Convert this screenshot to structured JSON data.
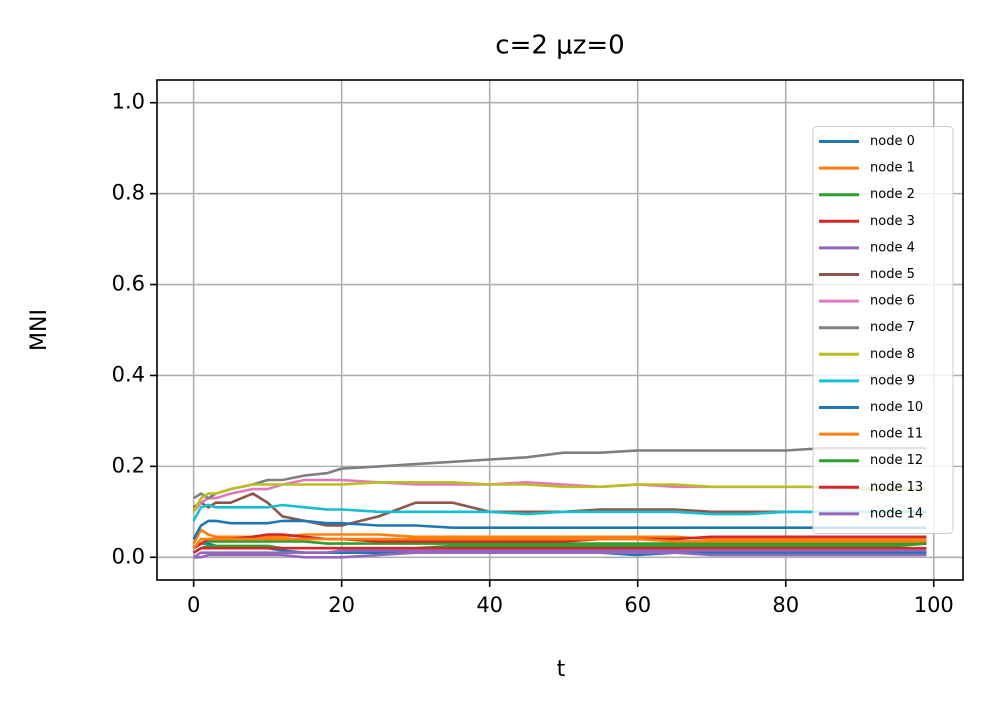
{
  "chart_data": {
    "type": "line",
    "title": "c=2 μz=0",
    "x_label": "t",
    "y_label": "MNI",
    "xlim": [
      -4.95,
      103.95
    ],
    "ylim": [
      -0.05,
      1.05
    ],
    "xticks": [
      0,
      20,
      40,
      60,
      80,
      100
    ],
    "yticks": [
      {
        "value": 0,
        "label": "0.0"
      },
      {
        "value": 0.2,
        "label": "0.2"
      },
      {
        "value": 0.4,
        "label": "0.4"
      },
      {
        "value": 0.6,
        "label": "0.6"
      },
      {
        "value": 0.8,
        "label": "0.8"
      },
      {
        "value": 1,
        "label": "1.0"
      }
    ],
    "grid": true,
    "legend": "center right",
    "x": [
      0,
      1,
      2,
      3,
      5,
      8,
      10,
      12,
      15,
      18,
      20,
      25,
      30,
      35,
      40,
      45,
      50,
      55,
      60,
      65,
      70,
      75,
      80,
      85,
      90,
      95,
      99
    ],
    "series": [
      {
        "name": "node 0",
        "color": "#1f77b4",
        "values": [
          0.02,
          0.03,
          0.03,
          0.025,
          0.02,
          0.02,
          0.02,
          0.015,
          0.01,
          0.01,
          0.01,
          0.01,
          0.01,
          0.01,
          0.01,
          0.01,
          0.01,
          0.01,
          0.005,
          0.01,
          0.01,
          0.01,
          0.01,
          0.01,
          0.01,
          0.01,
          0.01
        ]
      },
      {
        "name": "node 1",
        "color": "#ff7f0e",
        "values": [
          0.03,
          0.06,
          0.05,
          0.045,
          0.045,
          0.045,
          0.045,
          0.045,
          0.05,
          0.05,
          0.05,
          0.05,
          0.045,
          0.045,
          0.045,
          0.045,
          0.045,
          0.045,
          0.045,
          0.045,
          0.04,
          0.04,
          0.04,
          0.04,
          0.04,
          0.04,
          0.04
        ]
      },
      {
        "name": "node 2",
        "color": "#2ca02c",
        "values": [
          0.02,
          0.03,
          0.035,
          0.035,
          0.035,
          0.035,
          0.035,
          0.035,
          0.035,
          0.03,
          0.03,
          0.03,
          0.03,
          0.03,
          0.03,
          0.03,
          0.03,
          0.03,
          0.03,
          0.03,
          0.03,
          0.03,
          0.03,
          0.03,
          0.03,
          0.03,
          0.03
        ]
      },
      {
        "name": "node 3",
        "color": "#d62728",
        "values": [
          0.02,
          0.03,
          0.04,
          0.04,
          0.04,
          0.045,
          0.05,
          0.05,
          0.045,
          0.04,
          0.04,
          0.035,
          0.035,
          0.035,
          0.035,
          0.035,
          0.035,
          0.04,
          0.04,
          0.04,
          0.045,
          0.045,
          0.045,
          0.045,
          0.045,
          0.045,
          0.045
        ]
      },
      {
        "name": "node 4",
        "color": "#9467bd",
        "values": [
          0,
          0,
          0.005,
          0.005,
          0.005,
          0.005,
          0.005,
          0.005,
          0,
          0,
          0,
          0.005,
          0.01,
          0.01,
          0.01,
          0.01,
          0.01,
          0.01,
          0.01,
          0.01,
          0.005,
          0.005,
          0.005,
          0.005,
          0.005,
          0.005,
          0.005
        ]
      },
      {
        "name": "node 5",
        "color": "#8c564b",
        "values": [
          0.11,
          0.12,
          0.11,
          0.12,
          0.12,
          0.14,
          0.12,
          0.09,
          0.08,
          0.07,
          0.07,
          0.09,
          0.12,
          0.12,
          0.1,
          0.1,
          0.1,
          0.105,
          0.105,
          0.105,
          0.1,
          0.1,
          0.1,
          0.1,
          0.1,
          0.1,
          0.1
        ]
      },
      {
        "name": "node 6",
        "color": "#e377c2",
        "values": [
          0.1,
          0.12,
          0.13,
          0.13,
          0.14,
          0.15,
          0.15,
          0.16,
          0.17,
          0.17,
          0.17,
          0.165,
          0.16,
          0.16,
          0.16,
          0.165,
          0.16,
          0.155,
          0.16,
          0.155,
          0.155,
          0.155,
          0.155,
          0.155,
          0.15,
          0.15,
          0.15
        ]
      },
      {
        "name": "node 7",
        "color": "#7f7f7f",
        "values": [
          0.13,
          0.14,
          0.13,
          0.14,
          0.15,
          0.16,
          0.17,
          0.17,
          0.18,
          0.185,
          0.195,
          0.2,
          0.205,
          0.21,
          0.215,
          0.22,
          0.23,
          0.23,
          0.235,
          0.235,
          0.235,
          0.235,
          0.235,
          0.24,
          0.24,
          0.24,
          0.24
        ]
      },
      {
        "name": "node 8",
        "color": "#bcbd22",
        "values": [
          0.1,
          0.13,
          0.14,
          0.14,
          0.15,
          0.16,
          0.16,
          0.16,
          0.16,
          0.16,
          0.16,
          0.165,
          0.165,
          0.165,
          0.16,
          0.16,
          0.155,
          0.155,
          0.16,
          0.16,
          0.155,
          0.155,
          0.155,
          0.155,
          0.15,
          0.15,
          0.15
        ]
      },
      {
        "name": "node 9",
        "color": "#17becf",
        "values": [
          0.08,
          0.11,
          0.115,
          0.11,
          0.11,
          0.11,
          0.11,
          0.115,
          0.11,
          0.105,
          0.105,
          0.1,
          0.1,
          0.1,
          0.1,
          0.095,
          0.1,
          0.1,
          0.1,
          0.1,
          0.095,
          0.095,
          0.1,
          0.1,
          0.1,
          0.1,
          0.1
        ]
      },
      {
        "name": "node 10",
        "color": "#1f77b4",
        "values": [
          0.04,
          0.07,
          0.08,
          0.08,
          0.075,
          0.075,
          0.075,
          0.08,
          0.08,
          0.075,
          0.075,
          0.07,
          0.07,
          0.065,
          0.065,
          0.065,
          0.065,
          0.065,
          0.065,
          0.065,
          0.065,
          0.065,
          0.065,
          0.065,
          0.065,
          0.065,
          0.065
        ]
      },
      {
        "name": "node 11",
        "color": "#ff7f0e",
        "values": [
          0.02,
          0.04,
          0.04,
          0.04,
          0.04,
          0.04,
          0.04,
          0.04,
          0.04,
          0.04,
          0.04,
          0.04,
          0.04,
          0.04,
          0.04,
          0.04,
          0.04,
          0.04,
          0.04,
          0.035,
          0.035,
          0.035,
          0.035,
          0.035,
          0.035,
          0.035,
          0.035
        ]
      },
      {
        "name": "node 12",
        "color": "#2ca02c",
        "values": [
          0.01,
          0.02,
          0.025,
          0.025,
          0.025,
          0.025,
          0.025,
          0.02,
          0.02,
          0.02,
          0.02,
          0.02,
          0.02,
          0.025,
          0.025,
          0.025,
          0.025,
          0.025,
          0.025,
          0.025,
          0.025,
          0.025,
          0.025,
          0.025,
          0.025,
          0.025,
          0.03
        ]
      },
      {
        "name": "node 13",
        "color": "#d62728",
        "values": [
          0.01,
          0.02,
          0.02,
          0.02,
          0.02,
          0.02,
          0.02,
          0.02,
          0.02,
          0.02,
          0.02,
          0.02,
          0.02,
          0.02,
          0.02,
          0.02,
          0.02,
          0.02,
          0.02,
          0.02,
          0.02,
          0.02,
          0.02,
          0.02,
          0.02,
          0.02,
          0.02
        ]
      },
      {
        "name": "node 14",
        "color": "#9467bd",
        "values": [
          0,
          0.01,
          0.01,
          0.01,
          0.01,
          0.01,
          0.01,
          0.01,
          0.01,
          0.01,
          0.015,
          0.015,
          0.015,
          0.015,
          0.015,
          0.015,
          0.015,
          0.015,
          0.015,
          0.015,
          0.015,
          0.015,
          0.015,
          0.015,
          0.015,
          0.015,
          0.015
        ]
      }
    ]
  }
}
